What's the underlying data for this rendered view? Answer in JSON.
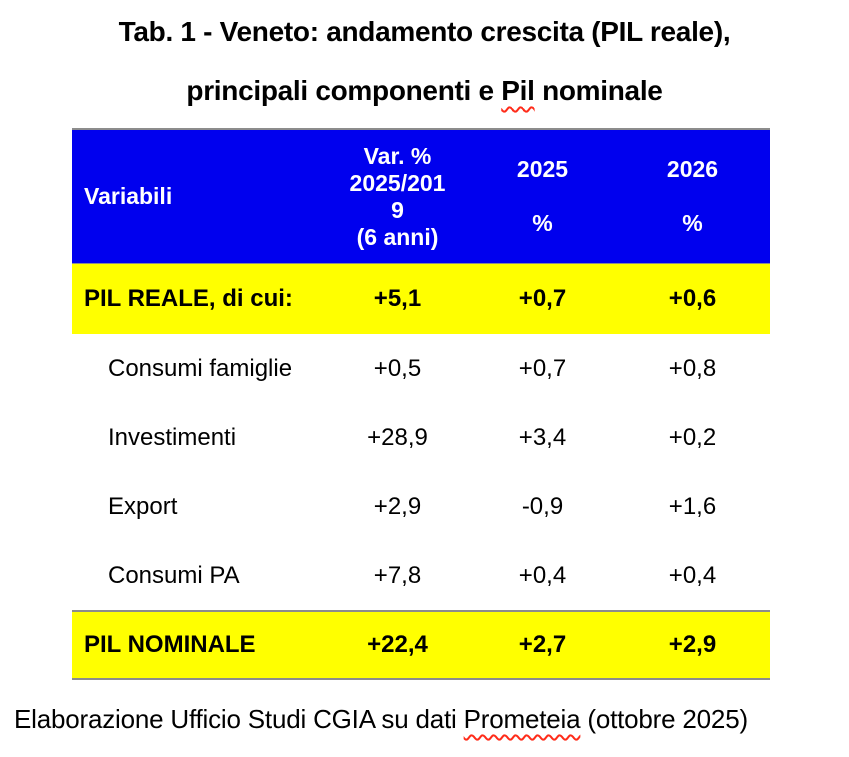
{
  "title": {
    "line1": "Tab. 1 - Veneto: andamento crescita (PIL reale),",
    "line2_prefix": "principali componenti e ",
    "line2_word": "Pil",
    "line2_suffix": " nominale"
  },
  "table": {
    "columns": [
      {
        "label": "Variabili"
      },
      {
        "label": "Var. %\n2025/201\n9\n(6 anni)"
      },
      {
        "label": "2025\n\n%"
      },
      {
        "label": "2026\n\n%"
      }
    ],
    "rows": [
      {
        "label": "PIL REALE, di cui:",
        "values": [
          "+5,1",
          "+0,7",
          "+0,6"
        ],
        "style": "highlight"
      },
      {
        "label": "Consumi famiglie",
        "values": [
          "+0,5",
          "+0,7",
          "+0,8"
        ],
        "style": "normal"
      },
      {
        "label": "Investimenti",
        "values": [
          "+28,9",
          "+3,4",
          "+0,2"
        ],
        "style": "normal"
      },
      {
        "label": "Export",
        "values": [
          "+2,9",
          "-0,9",
          "+1,6"
        ],
        "style": "normal"
      },
      {
        "label": "Consumi PA",
        "values": [
          "+7,8",
          "+0,4",
          "+0,4"
        ],
        "style": "normal"
      },
      {
        "label": "PIL NOMINALE",
        "values": [
          "+22,4",
          "+2,7",
          "+2,9"
        ],
        "style": "highlight"
      }
    ]
  },
  "footer": {
    "prefix": "Elaborazione Ufficio Studi CGIA su dati ",
    "word": "Prometeia",
    "suffix": " (ottobre 2025)"
  },
  "colors": {
    "header_bg": "#0000ee",
    "header_text": "#ffffff",
    "highlight_bg": "#ffff00",
    "rule_gray": "#8c8c8c",
    "squiggle_red": "#ff2b19",
    "text": "#000000",
    "background": "#ffffff"
  },
  "chart_data": {
    "type": "table",
    "title": "Tab. 1 - Veneto: andamento crescita (PIL reale), principali componenti e Pil nominale",
    "columns": [
      "Variabili",
      "Var. % 2025/2019 (6 anni)",
      "2025 %",
      "2026 %"
    ],
    "rows": [
      [
        "PIL REALE, di cui:",
        "+5,1",
        "+0,7",
        "+0,6"
      ],
      [
        "Consumi famiglie",
        "+0,5",
        "+0,7",
        "+0,8"
      ],
      [
        "Investimenti",
        "+28,9",
        "+3,4",
        "+0,2"
      ],
      [
        "Export",
        "+2,9",
        "-0,9",
        "+1,6"
      ],
      [
        "Consumi PA",
        "+7,8",
        "+0,4",
        "+0,4"
      ],
      [
        "PIL NOMINALE",
        "+22,4",
        "+2,7",
        "+2,9"
      ]
    ],
    "highlighted_rows": [
      "PIL REALE, di cui:",
      "PIL NOMINALE"
    ],
    "source_note": "Elaborazione Ufficio Studi CGIA su dati Prometeia (ottobre 2025)"
  }
}
